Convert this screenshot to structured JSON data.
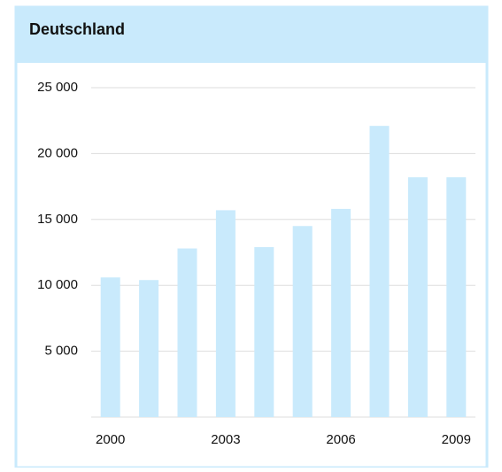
{
  "chart_data": {
    "type": "bar",
    "title": "Deutschland",
    "categories": [
      "2000",
      null,
      null,
      "2003",
      null,
      null,
      "2006",
      null,
      null,
      "2009"
    ],
    "values": [
      10600,
      10400,
      12800,
      15700,
      12900,
      14500,
      15800,
      22100,
      18200,
      18200
    ],
    "color": "#c9eafc",
    "ylim": [
      0,
      25000
    ],
    "yticks": [
      {
        "value": 5000,
        "label": "5 000"
      },
      {
        "value": 10000,
        "label": "10 000"
      },
      {
        "value": 15000,
        "label": "15 000"
      },
      {
        "value": 20000,
        "label": "20 000"
      },
      {
        "value": 25000,
        "label": "25 000"
      }
    ],
    "grid": true
  }
}
